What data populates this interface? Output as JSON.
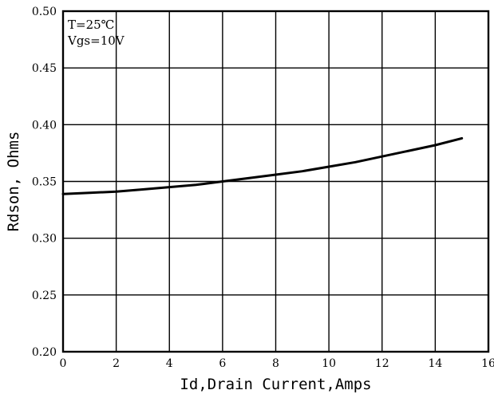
{
  "chart_data": {
    "type": "line",
    "xlabel": "Id,Drain Current,Amps",
    "ylabel": "Rdson, Ohms",
    "xlim": [
      0,
      16
    ],
    "ylim": [
      0.2,
      0.5
    ],
    "x_ticks": [
      "0",
      "2",
      "4",
      "6",
      "8",
      "10",
      "12",
      "14",
      "16"
    ],
    "y_ticks": [
      "0.20",
      "0.25",
      "0.30",
      "0.35",
      "0.40",
      "0.45",
      "0.50"
    ],
    "grid": true,
    "annotations": [
      "T=25℃",
      "Vgs=10V"
    ],
    "series": [
      {
        "x": [
          0,
          1,
          2,
          3,
          4,
          5,
          6,
          7,
          8,
          9,
          10,
          11,
          12,
          13,
          14,
          15
        ],
        "y": [
          0.339,
          0.34,
          0.341,
          0.343,
          0.345,
          0.347,
          0.35,
          0.353,
          0.356,
          0.359,
          0.363,
          0.367,
          0.372,
          0.377,
          0.382,
          0.388
        ]
      }
    ]
  }
}
